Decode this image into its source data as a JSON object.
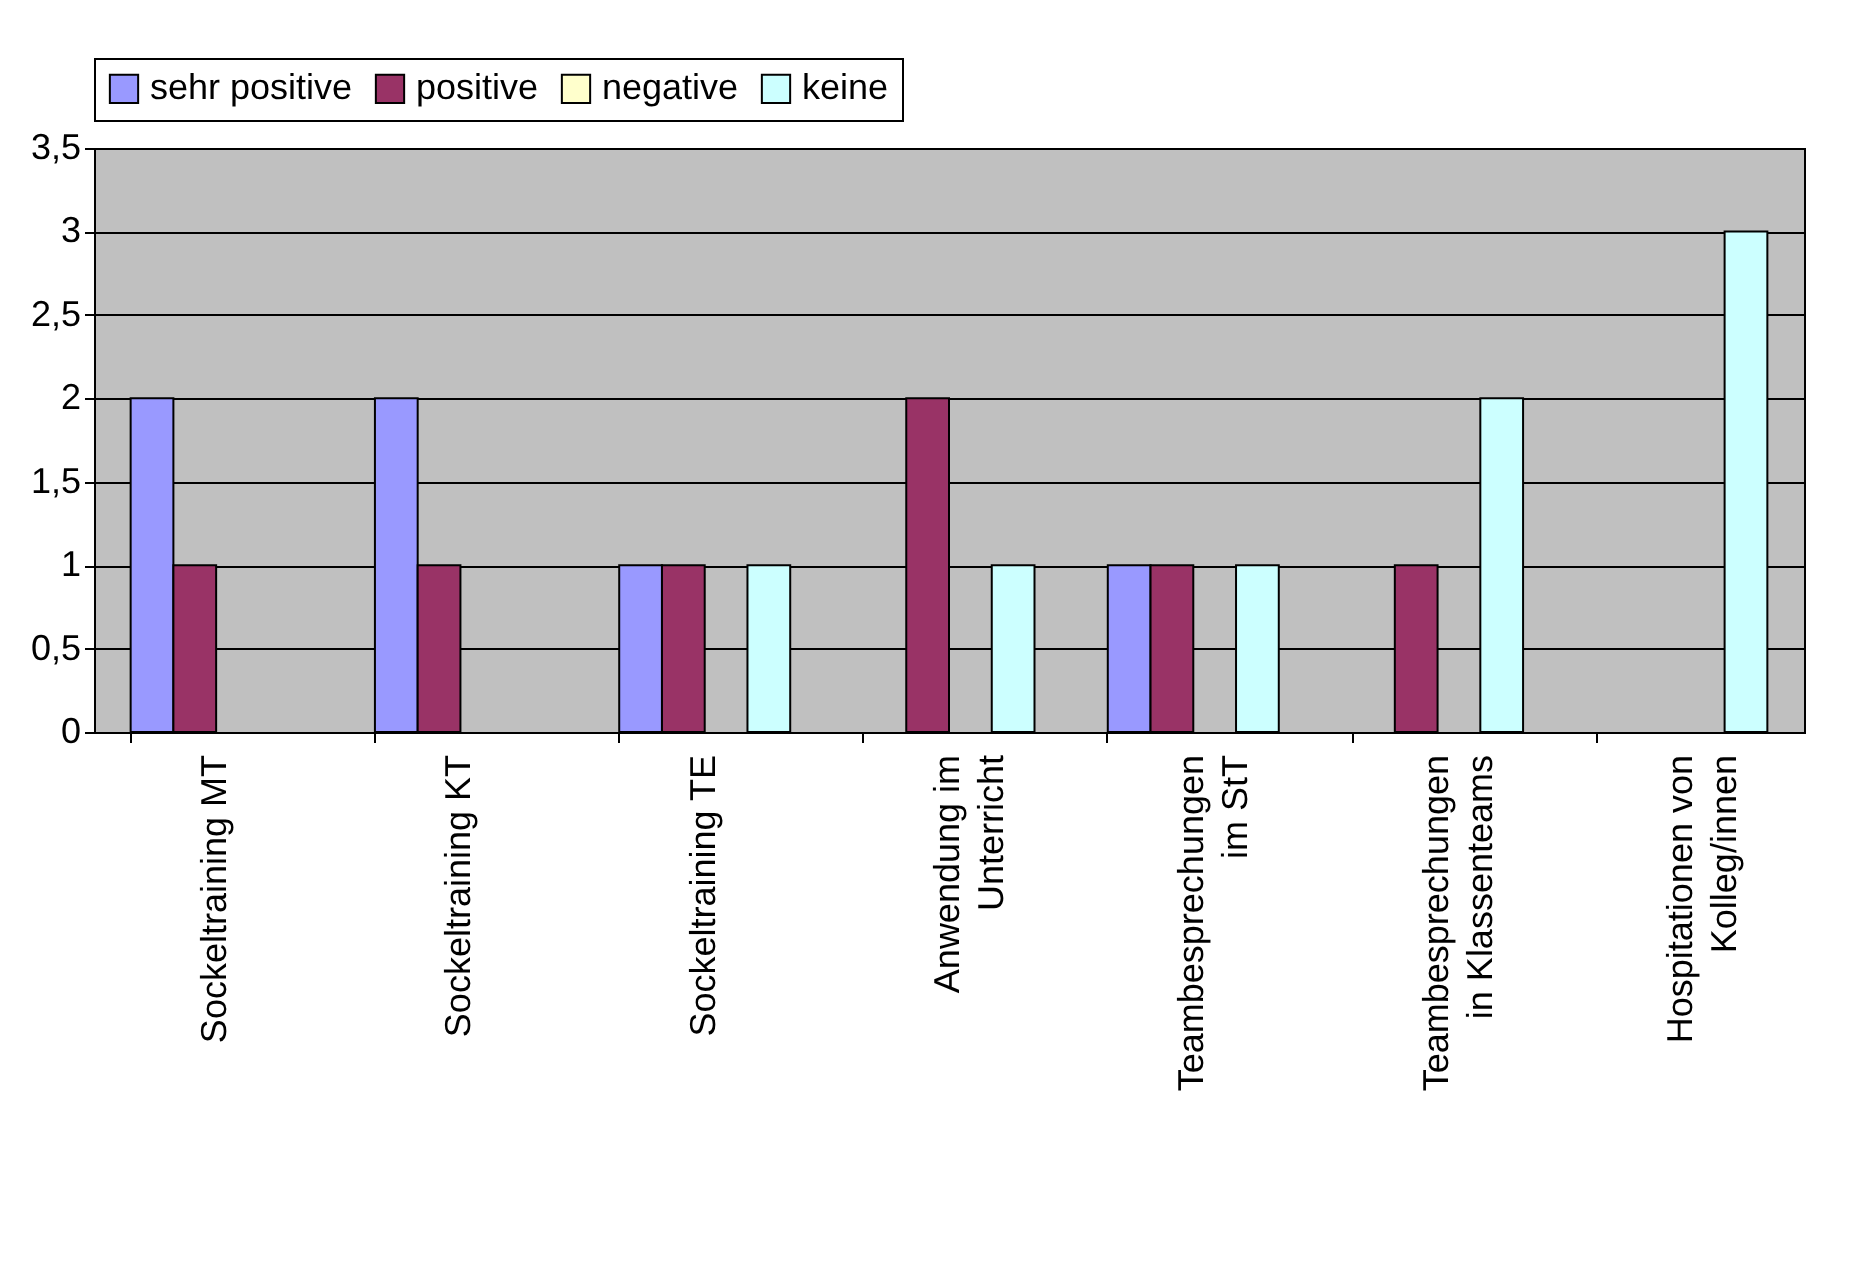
{
  "chart_data": {
    "type": "bar",
    "categories": [
      "Sockeltraining MT",
      "Sockeltraining KT",
      "Sockeltraining TE",
      "Anwendung im\nUnterricht",
      "Teambesprechungen\nim StT",
      "Teambesprechungen\nin Klassenteams",
      "Hospitationen von\nKolleg/innen"
    ],
    "series": [
      {
        "name": "sehr positive",
        "color": "#9999ff",
        "values": [
          2,
          2,
          1,
          0,
          1,
          0,
          0
        ]
      },
      {
        "name": "positive",
        "color": "#993366",
        "values": [
          1,
          1,
          1,
          2,
          1,
          1,
          0
        ]
      },
      {
        "name": "negative",
        "color": "#ffffcc",
        "values": [
          0,
          0,
          0,
          0,
          0,
          0,
          0
        ]
      },
      {
        "name": "keine",
        "color": "#ccffff",
        "values": [
          0,
          0,
          1,
          1,
          1,
          2,
          3
        ]
      }
    ],
    "ylim": [
      0,
      3.5
    ],
    "yticks": [
      0,
      {
        "value": 0.5,
        "label": "0,5"
      },
      1,
      {
        "value": 1.5,
        "label": "1,5"
      },
      2,
      {
        "value": 2.5,
        "label": "2,5"
      },
      3,
      {
        "value": 3.5,
        "label": "3,5"
      }
    ],
    "grid": "y",
    "legend": "top"
  }
}
